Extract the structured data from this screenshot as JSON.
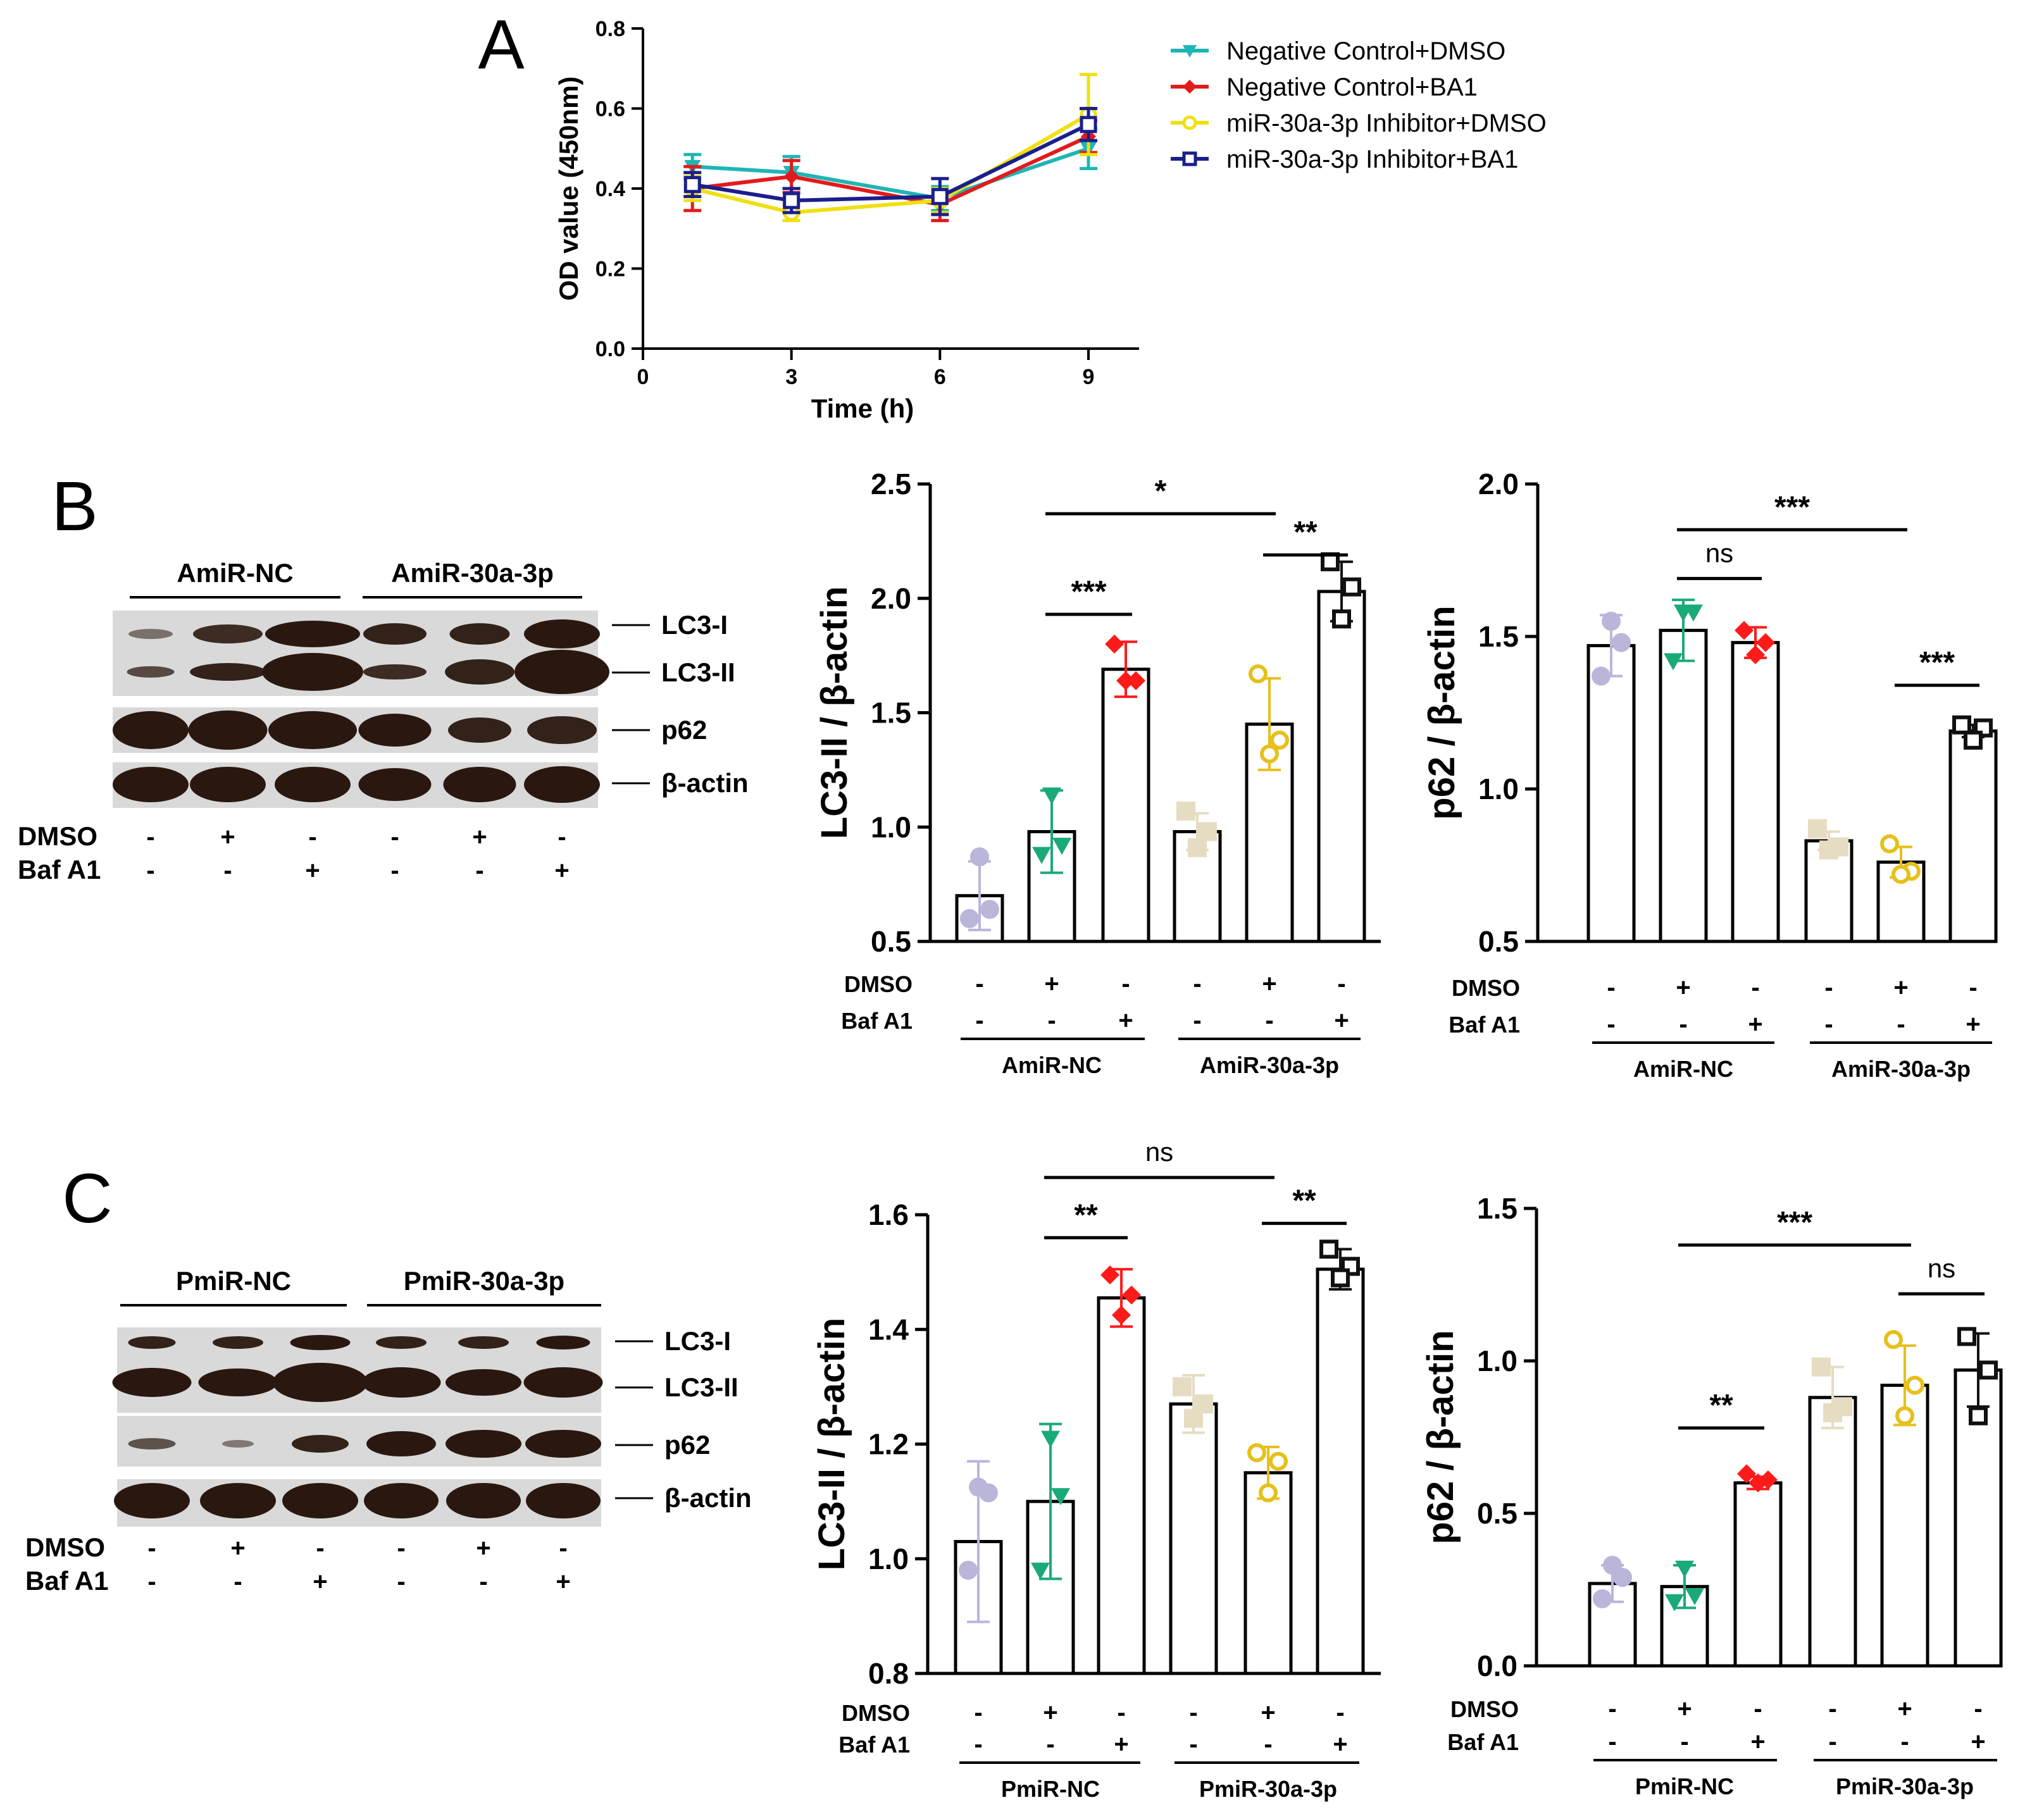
{
  "panel_letters": [
    "A",
    "B",
    "C"
  ],
  "chart_data": [
    {
      "id": "A",
      "type": "line",
      "title": "",
      "xlabel": "Time (h)",
      "ylabel": "OD  value (450nm)",
      "xlim": [
        0,
        10
      ],
      "ylim": [
        0,
        0.8
      ],
      "xticks": [
        0,
        3,
        6,
        9
      ],
      "yticks": [
        0.0,
        0.2,
        0.4,
        0.6,
        0.8
      ],
      "xtick_labels": [
        "0",
        "3",
        "6",
        "9"
      ],
      "ytick_labels": [
        "0.0",
        "0.2",
        "0.4",
        "0.6",
        "0.8"
      ],
      "x": [
        1,
        3,
        6,
        9
      ],
      "legend_position": "right",
      "series": [
        {
          "name": "Negative Control+DMSO",
          "color": "#1fb5b5",
          "marker": "triangle-down",
          "values": [
            0.455,
            0.44,
            0.375,
            0.5
          ],
          "err": [
            0.03,
            0.04,
            0.03,
            0.05
          ]
        },
        {
          "name": "Negative Control+BA1",
          "color": "#e31a1c",
          "marker": "diamond",
          "values": [
            0.4,
            0.43,
            0.36,
            0.53
          ],
          "err": [
            0.055,
            0.04,
            0.04,
            0.04
          ]
        },
        {
          "name": "miR-30a-3p Inhibitor+DMSO",
          "color": "#f0e010",
          "marker": "circle",
          "values": [
            0.4,
            0.34,
            0.37,
            0.585
          ],
          "err": [
            0.03,
            0.02,
            0.03,
            0.1
          ]
        },
        {
          "name": "miR-30a-3p Inhibitor+BA1",
          "color": "#1a1f8c",
          "marker": "square",
          "values": [
            0.41,
            0.37,
            0.38,
            0.56
          ],
          "err": [
            0.03,
            0.03,
            0.045,
            0.04
          ]
        }
      ]
    },
    {
      "id": "B-LC3",
      "type": "bar",
      "ylabel": "LC3-II / β-actin",
      "ylim": [
        0.5,
        2.5
      ],
      "yticks": [
        0.5,
        1.0,
        1.5,
        2.0,
        2.5
      ],
      "ytick_labels": [
        "0.5",
        "1.0",
        "1.5",
        "2.0",
        "2.5"
      ],
      "row_labels": [
        "DMSO",
        "Baf A1"
      ],
      "dmso": [
        "-",
        "+",
        "-",
        "-",
        "+",
        "-"
      ],
      "baf": [
        "-",
        "-",
        "+",
        "-",
        "-",
        "+"
      ],
      "groups": [
        "AmiR-NC",
        "AmiR-30a-3p"
      ],
      "values": [
        0.7,
        0.98,
        1.69,
        0.98,
        1.45,
        2.03
      ],
      "err": [
        0.15,
        0.18,
        0.12,
        0.08,
        0.2,
        0.13
      ],
      "points": [
        [
          0.87,
          0.64,
          0.6
        ],
        [
          1.14,
          0.92,
          0.88
        ],
        [
          1.8,
          1.64,
          1.64
        ],
        [
          1.07,
          0.98,
          0.91
        ],
        [
          1.67,
          1.38,
          1.32
        ],
        [
          2.16,
          2.05,
          1.91
        ]
      ],
      "markers": [
        "circle",
        "triangle-down",
        "diamond",
        "square",
        "ring",
        "hollow-square"
      ],
      "colors": [
        "#b9b6da",
        "#1aaa78",
        "#ff1a1a",
        "#e6dcc2",
        "#e6c01c",
        "#111111"
      ],
      "significance": [
        {
          "from": 1,
          "to": 2,
          "label": "***",
          "y": 1.93
        },
        {
          "from": 1,
          "to": 4,
          "label": "*",
          "y": 2.37
        },
        {
          "from": 4,
          "to": 5,
          "label": "**",
          "y": 2.19
        }
      ]
    },
    {
      "id": "B-p62",
      "type": "bar",
      "ylabel": "p62 / β-actin",
      "ylim": [
        0.5,
        2.0
      ],
      "yticks": [
        0.5,
        1.0,
        1.5,
        2.0
      ],
      "ytick_labels": [
        "0.5",
        "1.0",
        "1.5",
        "2.0"
      ],
      "row_labels": [
        "DMSO",
        "Baf A1"
      ],
      "dmso": [
        "-",
        "+",
        "-",
        "-",
        "+",
        "-"
      ],
      "baf": [
        "-",
        "-",
        "+",
        "-",
        "-",
        "+"
      ],
      "groups": [
        "AmiR-NC",
        "AmiR-30a-3p"
      ],
      "values": [
        1.47,
        1.52,
        1.48,
        0.83,
        0.76,
        1.19
      ],
      "err": [
        0.1,
        0.1,
        0.05,
        0.03,
        0.05,
        0.02
      ],
      "points": [
        [
          1.55,
          1.48,
          1.37
        ],
        [
          1.58,
          1.58,
          1.42
        ],
        [
          1.52,
          1.48,
          1.44
        ],
        [
          0.87,
          0.81,
          0.8
        ],
        [
          0.82,
          0.73,
          0.72
        ],
        [
          1.21,
          1.2,
          1.16
        ]
      ],
      "markers": [
        "circle",
        "triangle-down",
        "diamond",
        "square",
        "ring",
        "hollow-square"
      ],
      "colors": [
        "#b9b6da",
        "#1aaa78",
        "#ff1a1a",
        "#e6dcc2",
        "#e6c01c",
        "#111111"
      ],
      "significance": [
        {
          "from": 1,
          "to": 2,
          "label": "ns",
          "y": 1.69
        },
        {
          "from": 1,
          "to": 4,
          "label": "***",
          "y": 1.85
        },
        {
          "from": 4,
          "to": 5,
          "label": "***",
          "y": 1.34
        }
      ]
    },
    {
      "id": "C-LC3",
      "type": "bar",
      "ylabel": "LC3-II / β-actin",
      "ylim": [
        0.8,
        1.6
      ],
      "yticks": [
        0.8,
        1.0,
        1.2,
        1.4,
        1.6
      ],
      "ytick_labels": [
        "0.8",
        "1.0",
        "1.2",
        "1.4",
        "1.6"
      ],
      "row_labels": [
        "DMSO",
        "Baf A1"
      ],
      "dmso": [
        "-",
        "+",
        "-",
        "-",
        "+",
        "-"
      ],
      "baf": [
        "-",
        "-",
        "+",
        "-",
        "-",
        "+"
      ],
      "groups": [
        "PmiR-NC",
        "PmiR-30a-3p"
      ],
      "values": [
        1.03,
        1.1,
        1.455,
        1.27,
        1.15,
        1.505
      ],
      "err": [
        0.14,
        0.135,
        0.05,
        0.05,
        0.045,
        0.035
      ],
      "points": [
        [
          1.125,
          1.115,
          0.98
        ],
        [
          1.21,
          1.11,
          0.98
        ],
        [
          1.495,
          1.46,
          1.425
        ],
        [
          1.3,
          1.27,
          1.245
        ],
        [
          1.185,
          1.17,
          1.115
        ],
        [
          1.54,
          1.51,
          1.49
        ]
      ],
      "markers": [
        "circle",
        "triangle-down",
        "diamond",
        "square",
        "ring",
        "hollow-square"
      ],
      "colors": [
        "#b9b6da",
        "#1aaa78",
        "#ff1a1a",
        "#e6dcc2",
        "#e6c01c",
        "#111111"
      ],
      "significance": [
        {
          "from": 1,
          "to": 2,
          "label": "**",
          "y": 1.56
        },
        {
          "from": 1,
          "to": 4,
          "label": "ns",
          "y": 1.665
        },
        {
          "from": 4,
          "to": 5,
          "label": "**",
          "y": 1.585
        }
      ]
    },
    {
      "id": "C-p62",
      "type": "bar",
      "ylabel": "p62 / β-actin",
      "ylim": [
        0.0,
        1.5
      ],
      "yticks": [
        0.0,
        0.5,
        1.0,
        1.5
      ],
      "ytick_labels": [
        "0.0",
        "0.5",
        "1.0",
        "1.5"
      ],
      "row_labels": [
        "DMSO",
        "Baf A1"
      ],
      "dmso": [
        "-",
        "+",
        "-",
        "-",
        "+",
        "-"
      ],
      "baf": [
        "-",
        "-",
        "+",
        "-",
        "-",
        "+"
      ],
      "groups": [
        "PmiR-NC",
        "PmiR-30a-3p"
      ],
      "values": [
        0.27,
        0.26,
        0.6,
        0.88,
        0.92,
        0.97
      ],
      "err": [
        0.06,
        0.07,
        0.02,
        0.1,
        0.13,
        0.12
      ],
      "points": [
        [
          0.33,
          0.29,
          0.22
        ],
        [
          0.32,
          0.23,
          0.21
        ],
        [
          0.63,
          0.61,
          0.6
        ],
        [
          0.98,
          0.85,
          0.83
        ],
        [
          1.07,
          0.92,
          0.82
        ],
        [
          1.08,
          0.97,
          0.82
        ]
      ],
      "markers": [
        "circle",
        "triangle-down",
        "diamond",
        "square",
        "ring",
        "hollow-square"
      ],
      "colors": [
        "#b9b6da",
        "#1aaa78",
        "#ff1a1a",
        "#e6dcc2",
        "#e6c01c",
        "#111111"
      ],
      "significance": [
        {
          "from": 1,
          "to": 2,
          "label": "**",
          "y": 0.78
        },
        {
          "from": 1,
          "to": 4,
          "label": "***",
          "y": 1.38
        },
        {
          "from": 4,
          "to": 5,
          "label": "ns",
          "y": 1.22
        }
      ]
    }
  ],
  "blots": [
    {
      "id": "B",
      "groups": [
        "AmiR-NC",
        "AmiR-30a-3p"
      ],
      "bands": [
        "LC3-I",
        "LC3-II",
        "p62",
        "β-actin"
      ],
      "row_labels": [
        "DMSO",
        "Baf A1"
      ],
      "dmso": [
        "-",
        "+",
        "-",
        "-",
        "+",
        "-"
      ],
      "baf": [
        "-",
        "-",
        "+",
        "-",
        "-",
        "+"
      ]
    },
    {
      "id": "C",
      "groups": [
        "PmiR-NC",
        "PmiR-30a-3p"
      ],
      "bands": [
        "LC3-I",
        "LC3-II",
        "p62",
        "β-actin"
      ],
      "row_labels": [
        "DMSO",
        "Baf A1"
      ],
      "dmso": [
        "-",
        "+",
        "-",
        "-",
        "+",
        "-"
      ],
      "baf": [
        "-",
        "-",
        "+",
        "-",
        "-",
        "+"
      ]
    }
  ]
}
